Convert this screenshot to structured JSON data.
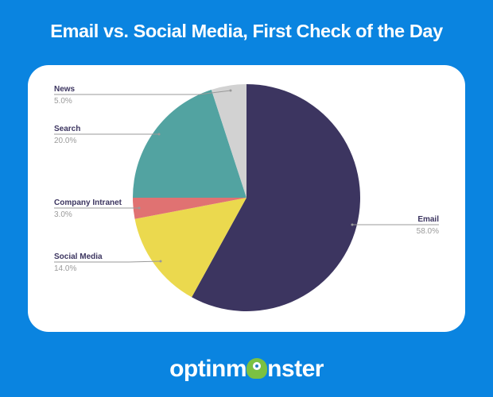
{
  "chart_data": {
    "type": "pie",
    "title": "Email vs. Social Media, First Check of the Day",
    "slices": [
      {
        "label": "Email",
        "value": 58.0,
        "display": "58.0%",
        "color": "#3c3560"
      },
      {
        "label": "Social Media",
        "value": 14.0,
        "display": "14.0%",
        "color": "#ebd94e"
      },
      {
        "label": "Company Intranet",
        "value": 3.0,
        "display": "3.0%",
        "color": "#e07272"
      },
      {
        "label": "Search",
        "value": 20.0,
        "display": "20.0%",
        "color": "#52a3a1"
      },
      {
        "label": "News",
        "value": 5.0,
        "display": "5.0%",
        "color": "#d2d2d2"
      }
    ],
    "start_angle": "top",
    "direction": "clockwise",
    "legend": "none"
  },
  "colors": {
    "background": "#0a84e0",
    "card": "#ffffff",
    "label": "#3c3560",
    "percent": "#9a9a9a"
  },
  "brand": {
    "logo_text_left": "optinm",
    "logo_text_right": "nster",
    "logo_icon": "monster-icon"
  }
}
